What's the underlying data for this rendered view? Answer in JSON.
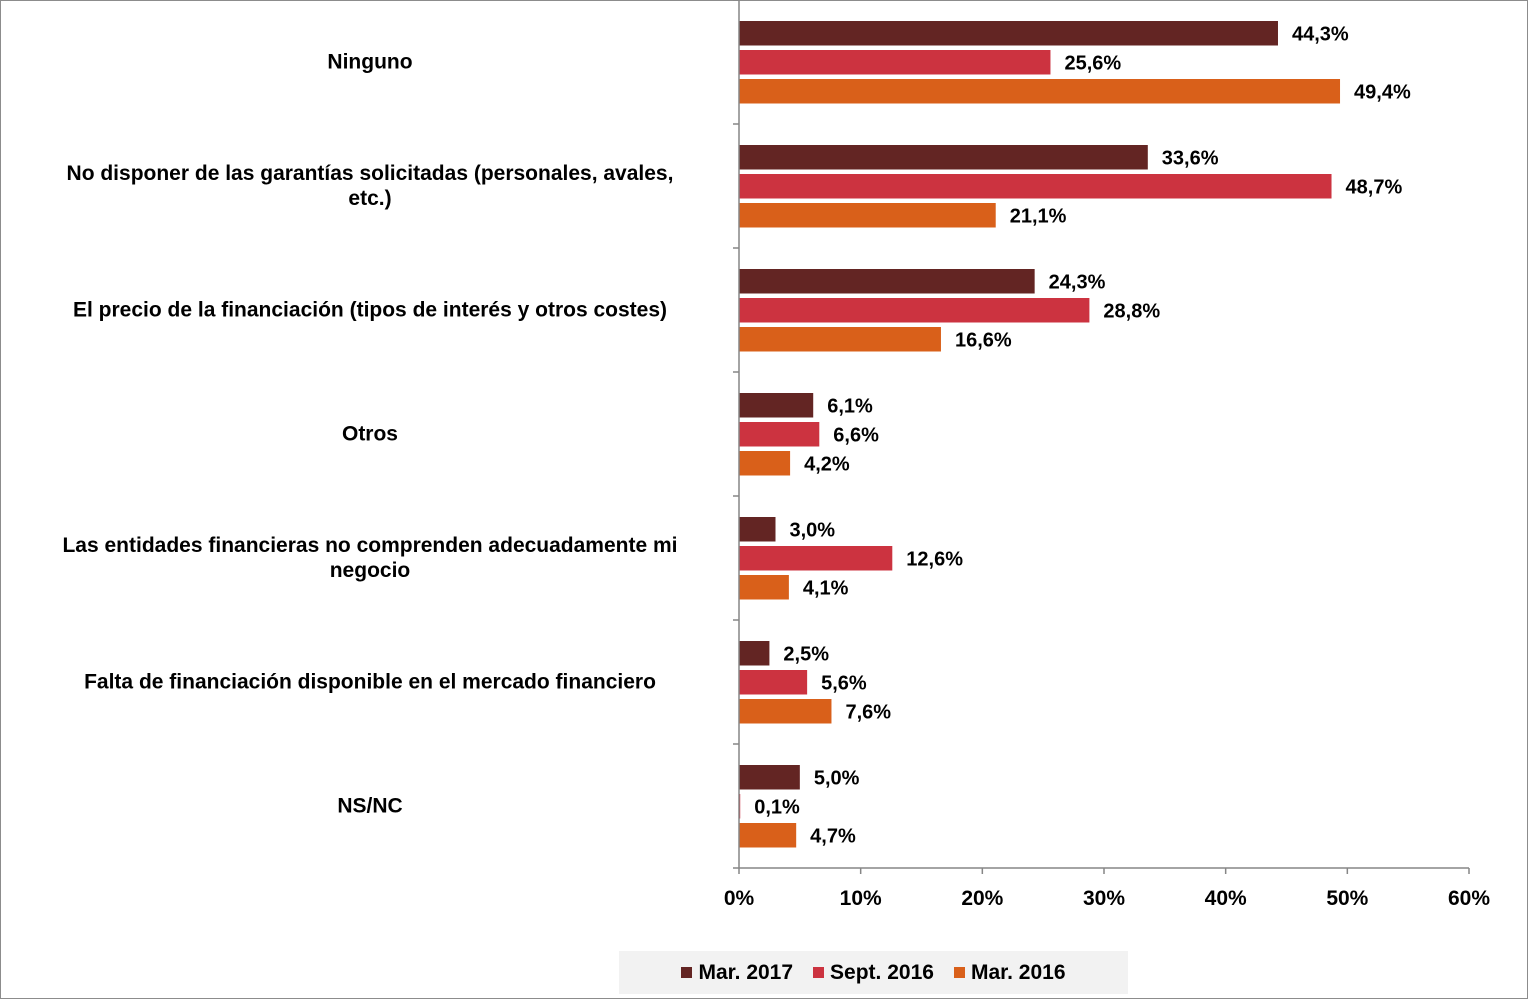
{
  "chart_data": {
    "type": "bar",
    "orientation": "horizontal",
    "categories": [
      "Ninguno",
      "No disponer de las garantías solicitadas (personales, avales, etc.)",
      "El precio de la financiación (tipos de interés y otros costes)",
      "Otros",
      "Las entidades financieras no comprenden adecuadamente mi negocio",
      "Falta de financiación disponible en el mercado financiero",
      "NS/NC"
    ],
    "category_display": [
      [
        "Ninguno"
      ],
      [
        "No disponer de las garantías solicitadas (personales, avales,",
        "etc.)"
      ],
      [
        "El precio de la financiación (tipos de interés y otros costes)"
      ],
      [
        "Otros"
      ],
      [
        "Las entidades financieras no comprenden adecuadamente mi",
        "negocio"
      ],
      [
        "Falta de financiación disponible en el mercado financiero"
      ],
      [
        "NS/NC"
      ]
    ],
    "series": [
      {
        "name": "Mar. 2017",
        "color": "#632523",
        "values": [
          44.3,
          33.6,
          24.3,
          6.1,
          3.0,
          2.5,
          5.0
        ],
        "labels": [
          "44,3%",
          "33,6%",
          "24,3%",
          "6,1%",
          "3,0%",
          "2,5%",
          "5,0%"
        ]
      },
      {
        "name": "Sept. 2016",
        "color": "#cc3340",
        "values": [
          25.6,
          48.7,
          28.8,
          6.6,
          12.6,
          5.6,
          0.1
        ],
        "labels": [
          "25,6%",
          "48,7%",
          "28,8%",
          "6,6%",
          "12,6%",
          "5,6%",
          "0,1%"
        ]
      },
      {
        "name": "Mar. 2016",
        "color": "#d9601a",
        "values": [
          49.4,
          21.1,
          16.6,
          4.2,
          4.1,
          7.6,
          4.7
        ],
        "labels": [
          "49,4%",
          "21,1%",
          "16,6%",
          "4,2%",
          "4,1%",
          "7,6%",
          "4,7%"
        ]
      }
    ],
    "xlim": [
      0,
      60
    ],
    "x_ticks": [
      0,
      10,
      20,
      30,
      40,
      50,
      60
    ],
    "x_tick_labels": [
      "0%",
      "10%",
      "20%",
      "30%",
      "40%",
      "50%",
      "60%"
    ],
    "grid": false,
    "legend_position": "bottom"
  }
}
